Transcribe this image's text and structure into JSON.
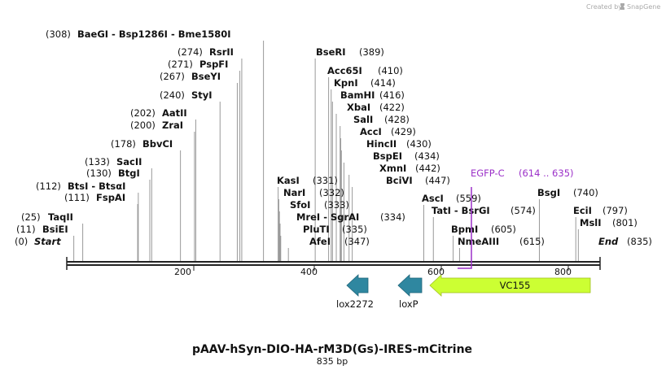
{
  "credit": "Created by",
  "brand": "SnapGene",
  "title": "pAAV-hSyn-DIO-HA-rM3D(Gs)-IRES-mCitrine",
  "length": "835 bp",
  "total_bp": 835,
  "ends": {
    "start": "Start",
    "end": "End",
    "start_pos": "(0)",
    "end_pos": "(835)"
  },
  "ticks": [
    "200",
    "400",
    "600",
    "800"
  ],
  "enzymes_left": [
    {
      "name": "BaeGI  -  Bsp1286I  -  Bme1580I",
      "pos": "(308)",
      "bp": 308
    },
    {
      "name": "RsrII",
      "pos": "(274)",
      "bp": 274
    },
    {
      "name": "PspFI",
      "pos": "(271)",
      "bp": 271
    },
    {
      "name": "BseYI",
      "pos": "(267)",
      "bp": 267
    },
    {
      "name": "StyI",
      "pos": "(240)",
      "bp": 240
    },
    {
      "name": "AatII",
      "pos": "(202)",
      "bp": 202
    },
    {
      "name": "ZraI",
      "pos": "(200)",
      "bp": 200
    },
    {
      "name": "BbvCI",
      "pos": "(178)",
      "bp": 178
    },
    {
      "name": "SacII",
      "pos": "(133)",
      "bp": 133
    },
    {
      "name": "BtgI",
      "pos": "(130)",
      "bp": 130
    },
    {
      "name": "BtsI  -  BtsαI",
      "pos": "(112)",
      "bp": 112
    },
    {
      "name": "FspAI",
      "pos": "(111)",
      "bp": 111
    },
    {
      "name": "TaqII",
      "pos": "(25)",
      "bp": 25
    },
    {
      "name": "BsiEI",
      "pos": "(11)",
      "bp": 11
    }
  ],
  "enzymes_right": [
    {
      "name": "BseRI",
      "pos": "(389)",
      "bp": 389
    },
    {
      "name": "Acc65I",
      "pos": "(410)",
      "bp": 410
    },
    {
      "name": "KpnI",
      "pos": "(414)",
      "bp": 414
    },
    {
      "name": "BamHI",
      "pos": "(416)",
      "bp": 416
    },
    {
      "name": "XbaI",
      "pos": "(422)",
      "bp": 422
    },
    {
      "name": "SalI",
      "pos": "(428)",
      "bp": 428
    },
    {
      "name": "AccI",
      "pos": "(429)",
      "bp": 429
    },
    {
      "name": "HincII",
      "pos": "(430)",
      "bp": 430
    },
    {
      "name": "BspEI",
      "pos": "(434)",
      "bp": 434
    },
    {
      "name": "XmnI",
      "pos": "(442)",
      "bp": 442
    },
    {
      "name": "BciVI",
      "pos": "(447)",
      "bp": 447
    },
    {
      "name": "KasI",
      "pos": "(331)",
      "bp": 331
    },
    {
      "name": "NarI",
      "pos": "(332)",
      "bp": 332
    },
    {
      "name": "SfoI",
      "pos": "(333)",
      "bp": 333
    },
    {
      "name": "MreI  -  SgrAI",
      "pos": "(334)",
      "bp": 334
    },
    {
      "name": "PluTI",
      "pos": "(335)",
      "bp": 335
    },
    {
      "name": "AfeI",
      "pos": "(347)",
      "bp": 347
    },
    {
      "name": "AscI",
      "pos": "(559)",
      "bp": 559
    },
    {
      "name": "TatI  -  BsrGI",
      "pos": "(574)",
      "bp": 574
    },
    {
      "name": "BpmI",
      "pos": "(605)",
      "bp": 605
    },
    {
      "name": "NmeAIII",
      "pos": "(615)",
      "bp": 615
    },
    {
      "name": "BsgI",
      "pos": "(740)",
      "bp": 740
    },
    {
      "name": "EciI",
      "pos": "(797)",
      "bp": 797
    },
    {
      "name": "MslI",
      "pos": "(801)",
      "bp": 801
    }
  ],
  "feature_label": {
    "name": "EGFP-C",
    "range": "(614 .. 635)"
  },
  "features": [
    {
      "name": "lox2272",
      "start": 445,
      "end": 477,
      "direction": "left",
      "color": "#2f87a0"
    },
    {
      "name": "loxP",
      "start": 530,
      "end": 562,
      "direction": "left",
      "color": "#2f87a0"
    },
    {
      "name": "VC155",
      "start": 568,
      "end": 822,
      "direction": "left",
      "color": "#ccff33"
    }
  ],
  "colors": {
    "primer": "#9b30c8",
    "line": "#222222",
    "cut": "#999999"
  }
}
